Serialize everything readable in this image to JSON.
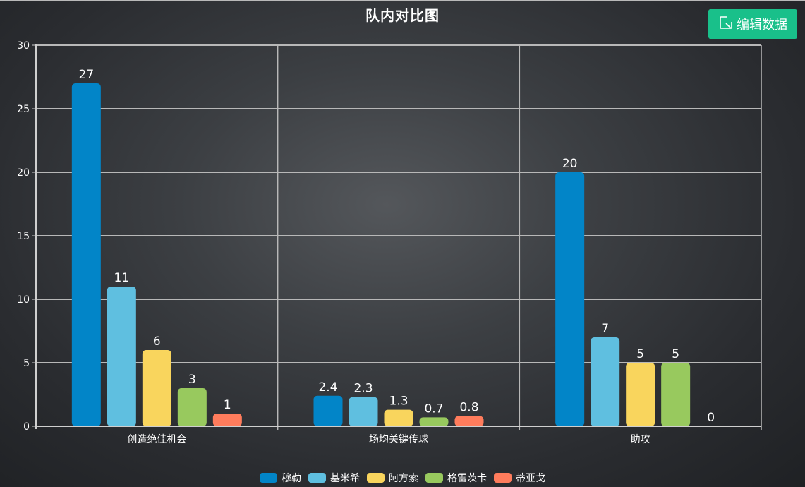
{
  "header": {
    "title": "队内对比图",
    "edit_button_label": "编辑数据",
    "edit_button_icon": "edit-icon"
  },
  "colors": {
    "accent_button": "#19c08a",
    "grid": "#b8b8b8",
    "axis": "#cfcfcf",
    "text": "#ffffff"
  },
  "chart_data": {
    "type": "bar",
    "title": "队内对比图",
    "xlabel": "",
    "ylabel": "",
    "ylim": [
      0,
      30
    ],
    "yticks": [
      0,
      5,
      10,
      15,
      20,
      25,
      30
    ],
    "grid": true,
    "legend_position": "bottom",
    "categories": [
      "创造绝佳机会",
      "场均关键传球",
      "助攻"
    ],
    "series": [
      {
        "name": "穆勒",
        "color": "#0285c8",
        "values": [
          27,
          2.4,
          20
        ]
      },
      {
        "name": "基米希",
        "color": "#5fbfe0",
        "values": [
          11,
          2.3,
          7
        ]
      },
      {
        "name": "阿方索",
        "color": "#f9d55d",
        "values": [
          6,
          1.3,
          5
        ]
      },
      {
        "name": "格雷茨卡",
        "color": "#98c95e",
        "values": [
          3,
          0.7,
          5
        ]
      },
      {
        "name": "蒂亚戈",
        "color": "#ff7c5c",
        "values": [
          1,
          0.8,
          0
        ]
      }
    ]
  }
}
